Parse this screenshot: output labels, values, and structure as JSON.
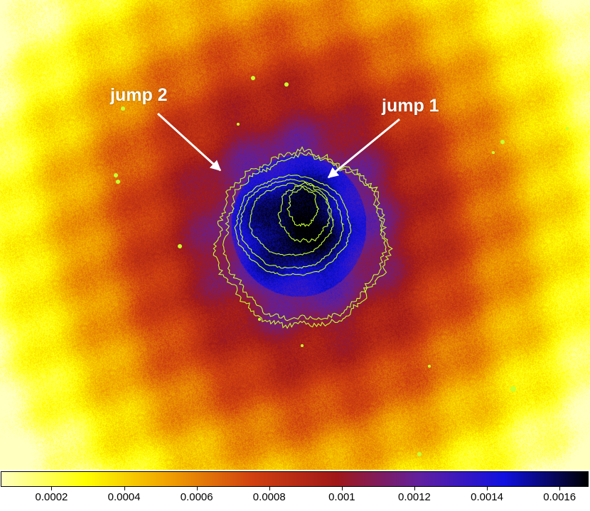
{
  "image": {
    "colormap": [
      "#ffffc0",
      "#ffff00",
      "#f0a000",
      "#d04010",
      "#a01818",
      "#6020a0",
      "#1010e0",
      "#000000"
    ],
    "contour_color": "#c8ff30",
    "arrow_color": "#ffffff"
  },
  "annotations": [
    {
      "id": "jump1",
      "label": "jump 1"
    },
    {
      "id": "jump2",
      "label": "jump 2"
    }
  ],
  "colorbar": {
    "ticks": [
      {
        "value": 0.0002,
        "label": "0.0002"
      },
      {
        "value": 0.0004,
        "label": "0.0004"
      },
      {
        "value": 0.0006,
        "label": "0.0006"
      },
      {
        "value": 0.0008,
        "label": "0.0008"
      },
      {
        "value": 0.001,
        "label": "0.001"
      },
      {
        "value": 0.0012,
        "label": "0.0012"
      },
      {
        "value": 0.0014,
        "label": "0.0014"
      },
      {
        "value": 0.0016,
        "label": "0.0016"
      }
    ],
    "range": [
      6e-05,
      0.00168
    ]
  }
}
